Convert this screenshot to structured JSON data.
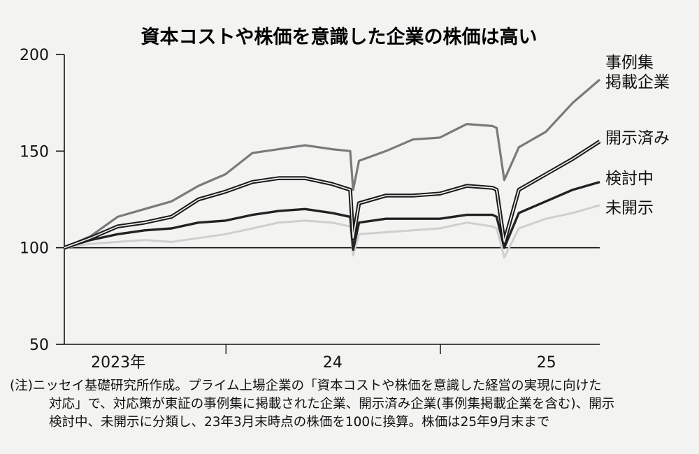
{
  "note": {
    "lines": [
      "(注)ニッセイ基礎研究所作成。プライム上場企業の「資本コストや株価を意識した経営の実現に向けた",
      "対応」で、対応策が東証の事例集に掲載された企業、開示済み企業(事例集掲載企業を含む)、開示",
      "検討中、未開示に分類し、23年3月末時点の株価を100に換算。株価は25年9月末まで"
    ]
  },
  "chart_data": {
    "type": "line",
    "title": "資本コストや株価を意識した企業の株価は高い",
    "xlabel": "",
    "ylabel": "",
    "ylim": [
      50,
      200
    ],
    "yticks": [
      50,
      100,
      150,
      200
    ],
    "x_range": [
      "2023-03-31",
      "2025-09-30"
    ],
    "xtick_labels": [
      {
        "label": "2023年",
        "date": "2023-07-01"
      },
      {
        "label": "24",
        "date": "2024-07-01"
      },
      {
        "label": "25",
        "date": "2025-07-01"
      }
    ],
    "x_separators": [
      "2024-01-01",
      "2025-01-01"
    ],
    "reference_line": 100,
    "grid": false,
    "legend": "right, labels next to line ends",
    "x": [
      "2023-03-31",
      "2023-05-15",
      "2023-06-30",
      "2023-08-15",
      "2023-09-30",
      "2023-11-15",
      "2023-12-31",
      "2024-02-15",
      "2024-03-31",
      "2024-05-15",
      "2024-06-30",
      "2024-07-31",
      "2024-08-05",
      "2024-08-15",
      "2024-09-30",
      "2024-11-15",
      "2024-12-31",
      "2025-02-15",
      "2025-03-31",
      "2025-04-07",
      "2025-04-20",
      "2025-05-15",
      "2025-06-30",
      "2025-08-15",
      "2025-09-30"
    ],
    "series": [
      {
        "name": "事例集\n掲載企業",
        "color": "#7a7a7a",
        "width": 3.2,
        "values": [
          100,
          106,
          116,
          120,
          124,
          132,
          138,
          149,
          151,
          153,
          151,
          150,
          130,
          145,
          150,
          156,
          157,
          164,
          163,
          162,
          135,
          152,
          160,
          175,
          187
        ]
      },
      {
        "name": "開示済み",
        "color": "#1a1a1a",
        "width": 3.4,
        "outline": true,
        "values": [
          100,
          105,
          111,
          113,
          116,
          125,
          129,
          134,
          136,
          136,
          133,
          130,
          105,
          123,
          127,
          127,
          128,
          132,
          131,
          130,
          103,
          130,
          138,
          146,
          155
        ]
      },
      {
        "name": "検討中",
        "color": "#222222",
        "width": 3.4,
        "values": [
          100,
          104,
          107,
          109,
          110,
          113,
          114,
          117,
          119,
          120,
          118,
          116,
          99,
          113,
          115,
          115,
          115,
          117,
          117,
          116,
          100,
          118,
          124,
          130,
          134
        ]
      },
      {
        "name": "未開示",
        "color": "#cfcfcf",
        "width": 3.0,
        "values": [
          100,
          102,
          103,
          104,
          103,
          105,
          107,
          110,
          113,
          114,
          113,
          111,
          96,
          107,
          108,
          109,
          110,
          113,
          111,
          110,
          95,
          110,
          115,
          118,
          122
        ]
      }
    ]
  }
}
